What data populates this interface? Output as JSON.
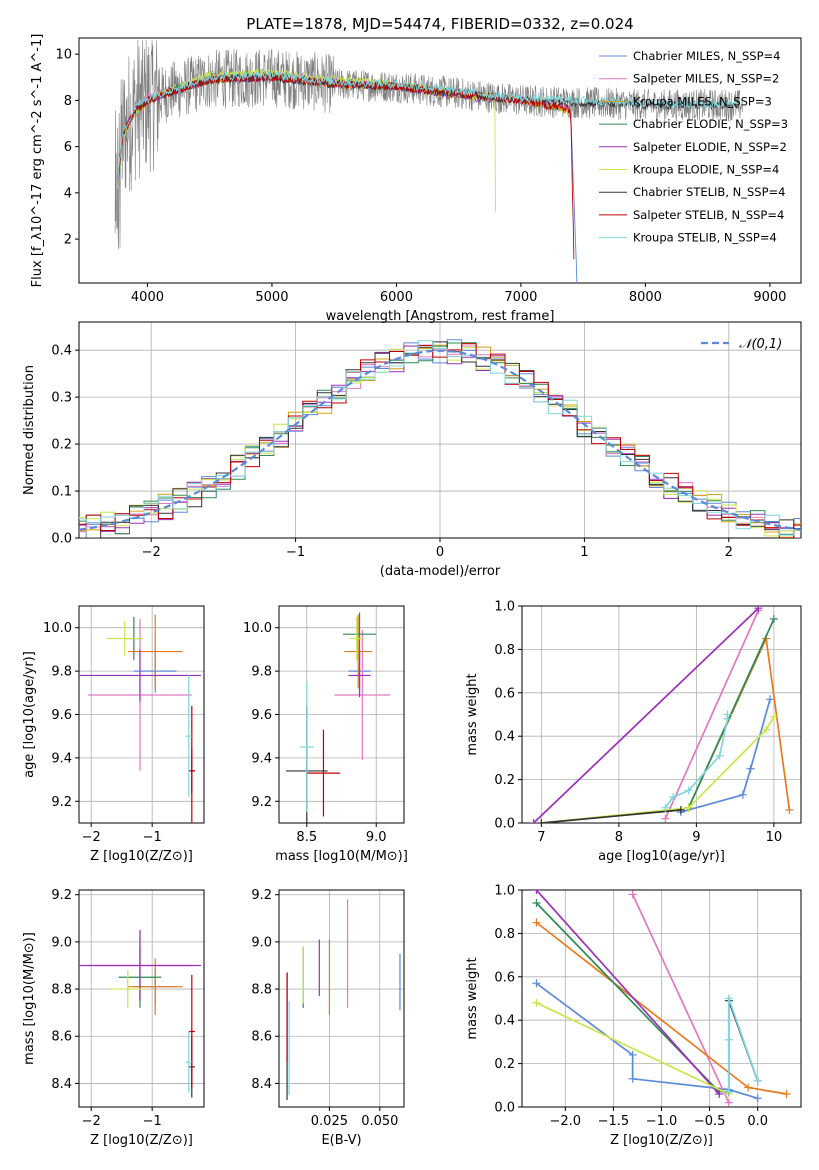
{
  "figure": {
    "title": "PLATE=1878, MJD=54474, FIBERID=0332, z=0.024"
  },
  "colors": {
    "data_spectrum": "#7f7f7f",
    "grid": "#b0b0b0",
    "normal_curve": "#5b8bd8"
  },
  "chart_data": [
    {
      "id": "spectrum",
      "type": "line",
      "xlabel": "wavelength [Angstrom, rest frame]",
      "ylabel": "Flux [f_λ10^-17 erg cm^-2 s^-1 A^-1]",
      "xlim": [
        3450,
        9250
      ],
      "ylim": [
        0.1,
        10.7
      ],
      "xticks": [
        4000,
        5000,
        6000,
        7000,
        8000,
        9000
      ],
      "yticks": [
        2,
        4,
        6,
        8,
        10
      ],
      "grid": false,
      "legend_position": "top-right",
      "series": [
        {
          "name": "Chabrier MILES, N_SSP=4",
          "color": "#5b8bd8",
          "x": [
            3760,
            3800,
            3900,
            4000,
            4200,
            4500,
            5000,
            5500,
            6000,
            6500,
            7000,
            7200,
            7400,
            7450
          ],
          "y": [
            4.5,
            6.5,
            7.6,
            8.0,
            8.4,
            8.9,
            9.0,
            8.7,
            8.6,
            8.3,
            8.0,
            7.8,
            7.6,
            0.2
          ]
        },
        {
          "name": "Salpeter MILES, N_SSP=2",
          "color": "#e377c2",
          "x": [
            3760,
            3800,
            3900,
            4000,
            4200,
            4500,
            5000,
            5500,
            6000,
            6500,
            7000,
            7200,
            7400
          ],
          "y": [
            4.2,
            6.4,
            7.7,
            8.1,
            8.5,
            9.0,
            9.1,
            8.8,
            8.6,
            8.3,
            8.0,
            7.9,
            7.6
          ]
        },
        {
          "name": "Kroupa MILES, N_SSP=3",
          "color": "#d6a016",
          "x": [
            3760,
            3800,
            3900,
            4000,
            4200,
            4500,
            5000,
            5500,
            6000,
            6500,
            7000,
            7200,
            7400
          ],
          "y": [
            4.6,
            6.5,
            7.5,
            7.9,
            8.4,
            8.9,
            9.0,
            8.7,
            8.6,
            8.2,
            8.0,
            7.8,
            7.5
          ]
        },
        {
          "name": "Chabrier ELODIE, N_SSP=3",
          "color": "#2e8b57",
          "x": [
            3760,
            3800,
            3900,
            4000,
            4200,
            4500,
            5000,
            5500,
            6000,
            6500,
            6800
          ],
          "y": [
            4.4,
            6.6,
            7.6,
            8.0,
            8.5,
            9.0,
            9.1,
            8.8,
            8.6,
            8.3,
            8.1
          ]
        },
        {
          "name": "Salpeter ELODIE, N_SSP=2",
          "color": "#9b30b8",
          "x": [
            3760,
            3800,
            3900,
            4000,
            4200,
            4500,
            5000,
            5500,
            6000,
            6500,
            6800
          ],
          "y": [
            4.5,
            6.5,
            7.6,
            8.0,
            8.4,
            8.9,
            9.0,
            8.8,
            8.6,
            8.2,
            8.0
          ]
        },
        {
          "name": "Kroupa ELODIE, N_SSP=4",
          "color": "#c8e64a",
          "x": [
            3760,
            3800,
            3900,
            4000,
            4200,
            4500,
            5000,
            5500,
            6000,
            6500,
            6790,
            6800
          ],
          "y": [
            4.3,
            6.4,
            7.5,
            8.0,
            8.5,
            9.1,
            9.2,
            8.9,
            8.7,
            8.3,
            8.1,
            0.2
          ]
        },
        {
          "name": "Chabrier STELIB, N_SSP=4",
          "color": "#333333",
          "x": [
            3760,
            3800,
            3900,
            4000,
            4200,
            4500,
            5000,
            5500,
            6000,
            6500,
            7000,
            7500,
            8000,
            8500,
            8750
          ],
          "y": [
            4.4,
            6.5,
            7.6,
            8.0,
            8.4,
            8.9,
            9.0,
            8.7,
            8.6,
            8.3,
            8.0,
            7.9,
            7.8,
            7.8,
            7.8
          ]
        },
        {
          "name": "Salpeter STELIB, N_SSP=4",
          "color": "#c00000",
          "x": [
            3760,
            3800,
            3900,
            4000,
            4200,
            4500,
            5000,
            5500,
            6000,
            6500,
            7000,
            7200,
            7400,
            7430
          ],
          "y": [
            4.4,
            6.5,
            7.6,
            8.0,
            8.4,
            8.9,
            9.0,
            8.7,
            8.6,
            8.3,
            8.0,
            7.8,
            7.6,
            0.2
          ]
        },
        {
          "name": "Kroupa STELIB, N_SSP=4",
          "color": "#7fd6dc",
          "x": [
            3760,
            3800,
            3900,
            4000,
            4200,
            4500,
            5000,
            5500,
            6000,
            6500,
            7000,
            7500,
            8000,
            8500,
            8750
          ],
          "y": [
            4.5,
            6.6,
            7.7,
            8.1,
            8.5,
            9.0,
            9.1,
            8.8,
            8.7,
            8.4,
            8.1,
            8.0,
            7.9,
            7.8,
            7.9
          ]
        }
      ]
    },
    {
      "id": "residuals",
      "type": "line",
      "xlabel": "(data-model)/error",
      "ylabel": "Normed distribution",
      "xlim": [
        -2.5,
        2.5
      ],
      "ylim": [
        0.0,
        0.46
      ],
      "xticks": [
        -2,
        -1,
        0,
        1,
        2
      ],
      "yticks": [
        0.0,
        0.1,
        0.2,
        0.3,
        0.4
      ],
      "grid": true,
      "legend_position": "top-right",
      "series": [
        {
          "name": "𝒩(0,1)",
          "style": "dashed",
          "color": "#5b8bd8",
          "function": "normal_pdf",
          "mean": 0,
          "sd": 1
        }
      ]
    },
    {
      "id": "age_vs_Z",
      "type": "scatter",
      "xlabel": "Z [log10(Z/Z⊙)]",
      "ylabel": "age [log10(age/yr)]",
      "xlim": [
        -2.2,
        -0.15
      ],
      "ylim": [
        9.1,
        10.1
      ],
      "xticks": [
        -2,
        -1
      ],
      "yticks": [
        9.2,
        9.4,
        9.6,
        9.8,
        10.0
      ],
      "grid": true,
      "points": [
        {
          "x": -0.95,
          "y": 9.8,
          "xerr": 0.35,
          "yerr": 0.1,
          "color": "#5b8bd8"
        },
        {
          "x": -1.2,
          "y": 9.69,
          "xerr": 0.85,
          "yerr": 0.35,
          "color": "#e377c2"
        },
        {
          "x": -0.95,
          "y": 9.89,
          "xerr": 0.45,
          "yerr": 0.17,
          "color": "#e87a1e"
        },
        {
          "x": -1.3,
          "y": 9.95,
          "xerr": 0.15,
          "yerr": 0.1,
          "color": "#2e8b57"
        },
        {
          "x": -1.2,
          "y": 9.78,
          "xerr": 1.0,
          "yerr": 0.12,
          "color": "#9b30b8"
        },
        {
          "x": -1.45,
          "y": 9.95,
          "xerr": 0.3,
          "yerr": 0.08,
          "color": "#c8e64a"
        },
        {
          "x": -0.35,
          "y": 9.34,
          "xerr": 0.05,
          "yerr": 0.1,
          "color": "#333333"
        },
        {
          "x": -0.35,
          "y": 9.34,
          "xerr": 0.05,
          "yerr": 0.3,
          "color": "#c00000"
        },
        {
          "x": -0.4,
          "y": 9.5,
          "xerr": 0.05,
          "yerr": 0.28,
          "color": "#7fd6dc"
        }
      ]
    },
    {
      "id": "age_vs_mass",
      "type": "scatter",
      "xlabel": "mass [log10(M/M⊙)]",
      "ylabel": "",
      "xlim": [
        8.3,
        9.2
      ],
      "ylim": [
        9.1,
        10.1
      ],
      "xticks": [
        8.5,
        9.0
      ],
      "yticks": [
        9.2,
        9.4,
        9.6,
        9.8,
        10.0
      ],
      "grid": true,
      "points": [
        {
          "x": 8.88,
          "y": 9.8,
          "xerr": 0.08,
          "yerr": 0.1,
          "color": "#5b8bd8"
        },
        {
          "x": 8.9,
          "y": 9.69,
          "xerr": 0.2,
          "yerr": 0.3,
          "color": "#e377c2"
        },
        {
          "x": 8.87,
          "y": 9.89,
          "xerr": 0.1,
          "yerr": 0.17,
          "color": "#e87a1e"
        },
        {
          "x": 8.88,
          "y": 9.97,
          "xerr": 0.12,
          "yerr": 0.1,
          "color": "#2e8b57"
        },
        {
          "x": 8.88,
          "y": 9.78,
          "xerr": 0.08,
          "yerr": 0.1,
          "color": "#9b30b8"
        },
        {
          "x": 8.86,
          "y": 9.95,
          "xerr": 0.05,
          "yerr": 0.1,
          "color": "#c8e64a"
        },
        {
          "x": 8.5,
          "y": 9.34,
          "xerr": 0.15,
          "yerr": 0.3,
          "color": "#333333"
        },
        {
          "x": 8.62,
          "y": 9.33,
          "xerr": 0.12,
          "yerr": 0.2,
          "color": "#c00000"
        },
        {
          "x": 8.5,
          "y": 9.45,
          "xerr": 0.05,
          "yerr": 0.3,
          "color": "#7fd6dc"
        }
      ]
    },
    {
      "id": "weight_vs_age",
      "type": "line",
      "xlabel": "age [log10(age/yr)]",
      "ylabel": "mass weight",
      "xlim": [
        6.75,
        10.35
      ],
      "ylim": [
        0.0,
        1.0
      ],
      "xticks": [
        7,
        8,
        9,
        10
      ],
      "yticks": [
        0.0,
        0.2,
        0.4,
        0.6,
        0.8,
        1.0
      ],
      "grid": true,
      "series": [
        {
          "color": "#5b8bd8",
          "x": [
            8.8,
            9.6,
            9.7,
            9.95
          ],
          "y": [
            0.05,
            0.13,
            0.25,
            0.57
          ]
        },
        {
          "color": "#e377c2",
          "x": [
            8.6,
            9.8
          ],
          "y": [
            0.02,
            0.98
          ]
        },
        {
          "color": "#e87a1e",
          "x": [
            8.9,
            9.9,
            10.2
          ],
          "y": [
            0.07,
            0.85,
            0.06
          ]
        },
        {
          "color": "#2e8b57",
          "x": [
            8.9,
            10.0
          ],
          "y": [
            0.07,
            0.94
          ]
        },
        {
          "color": "#9b30b8",
          "x": [
            6.9,
            9.8
          ],
          "y": [
            0.0,
            0.99
          ]
        },
        {
          "color": "#c8e64a",
          "x": [
            7.0,
            8.9,
            9.9,
            10.0
          ],
          "y": [
            0.0,
            0.07,
            0.43,
            0.49
          ]
        },
        {
          "color": "#333333",
          "x": [
            7.0,
            8.8
          ],
          "y": [
            0.0,
            0.06
          ]
        },
        {
          "color": "#7fd6dc",
          "x": [
            8.6,
            8.7,
            8.9,
            9.3,
            9.4,
            9.4
          ],
          "y": [
            0.07,
            0.12,
            0.15,
            0.31,
            0.48,
            0.5
          ]
        }
      ]
    },
    {
      "id": "mass_vs_Z",
      "type": "scatter",
      "xlabel": "Z [log10(Z/Z⊙)]",
      "ylabel": "mass [log10(M/M⊙)]",
      "xlim": [
        -2.2,
        -0.15
      ],
      "ylim": [
        8.3,
        9.22
      ],
      "xticks": [
        -2,
        -1
      ],
      "yticks": [
        8.4,
        8.6,
        8.8,
        9.0,
        9.2
      ],
      "grid": true,
      "points": [
        {
          "x": -0.95,
          "y": 8.81,
          "xerr": 0.35,
          "yerr": 0.08,
          "color": "#5b8bd8"
        },
        {
          "x": -1.2,
          "y": 8.9,
          "xerr": 0.85,
          "yerr": 0.15,
          "color": "#e377c2"
        },
        {
          "x": -0.95,
          "y": 8.81,
          "xerr": 0.45,
          "yerr": 0.12,
          "color": "#e87a1e"
        },
        {
          "x": -1.2,
          "y": 8.85,
          "xerr": 0.35,
          "yerr": 0.13,
          "color": "#2e8b57"
        },
        {
          "x": -1.2,
          "y": 8.9,
          "xerr": 1.0,
          "yerr": 0.15,
          "color": "#9b30b8"
        },
        {
          "x": -1.4,
          "y": 8.8,
          "xerr": 0.3,
          "yerr": 0.08,
          "color": "#c8e64a"
        },
        {
          "x": -0.35,
          "y": 8.47,
          "xerr": 0.05,
          "yerr": 0.13,
          "color": "#333333"
        },
        {
          "x": -0.35,
          "y": 8.62,
          "xerr": 0.05,
          "yerr": 0.24,
          "color": "#c00000"
        },
        {
          "x": -0.4,
          "y": 8.49,
          "xerr": 0.05,
          "yerr": 0.13,
          "color": "#7fd6dc"
        }
      ]
    },
    {
      "id": "mass_vs_ebv",
      "type": "scatter",
      "xlabel": "E(B-V)",
      "ylabel": "",
      "xlim": [
        0.0,
        0.062
      ],
      "ylim": [
        8.3,
        9.22
      ],
      "xticks": [
        0.025,
        0.05
      ],
      "yticks": [
        8.4,
        8.6,
        8.8,
        9.0,
        9.2
      ],
      "grid": true,
      "points": [
        {
          "x": 0.06,
          "y": 8.83,
          "xerr": 0,
          "yerr": 0.12,
          "color": "#5b8bd8"
        },
        {
          "x": 0.034,
          "y": 8.95,
          "xerr": 0,
          "yerr": 0.23,
          "color": "#e377c2"
        },
        {
          "x": 0.025,
          "y": 8.85,
          "xerr": 0,
          "yerr": 0.16,
          "color": "#e87a1e"
        },
        {
          "x": 0.012,
          "y": 8.85,
          "xerr": 0,
          "yerr": 0.13,
          "color": "#2e8b57"
        },
        {
          "x": 0.02,
          "y": 8.89,
          "xerr": 0,
          "yerr": 0.12,
          "color": "#9b30b8"
        },
        {
          "x": 0.012,
          "y": 8.86,
          "xerr": 0,
          "yerr": 0.12,
          "color": "#c8e64a"
        },
        {
          "x": 0.004,
          "y": 8.6,
          "xerr": 0,
          "yerr": 0.27,
          "color": "#333333"
        },
        {
          "x": 0.004,
          "y": 8.68,
          "xerr": 0,
          "yerr": 0.19,
          "color": "#c00000"
        },
        {
          "x": 0.005,
          "y": 8.55,
          "xerr": 0,
          "yerr": 0.2,
          "color": "#7fd6dc"
        }
      ]
    },
    {
      "id": "weight_vs_Z",
      "type": "line",
      "xlabel": "Z [log10(Z/Z⊙)]",
      "ylabel": "mass weight",
      "xlim": [
        -2.45,
        0.45
      ],
      "ylim": [
        0.0,
        1.0
      ],
      "xticks": [
        -2.0,
        -1.5,
        -1.0,
        -0.5,
        0.0
      ],
      "yticks": [
        0.0,
        0.2,
        0.4,
        0.6,
        0.8,
        1.0
      ],
      "grid": true,
      "series": [
        {
          "color": "#5b8bd8",
          "x": [
            -2.3,
            -1.3,
            -1.3,
            -0.3,
            0.0
          ],
          "y": [
            0.57,
            0.24,
            0.13,
            0.08,
            0.04
          ]
        },
        {
          "color": "#e377c2",
          "x": [
            -1.3,
            -0.3
          ],
          "y": [
            0.98,
            0.02
          ]
        },
        {
          "color": "#e87a1e",
          "x": [
            -2.3,
            -0.1,
            0.3
          ],
          "y": [
            0.85,
            0.09,
            0.06
          ]
        },
        {
          "color": "#2e8b57",
          "x": [
            -2.3,
            -0.4
          ],
          "y": [
            0.94,
            0.07
          ]
        },
        {
          "color": "#9b30b8",
          "x": [
            -2.3,
            -0.4
          ],
          "y": [
            1.0,
            0.06
          ]
        },
        {
          "color": "#c8e64a",
          "x": [
            -2.3,
            -0.3
          ],
          "y": [
            0.48,
            0.06
          ]
        },
        {
          "color": "#333333",
          "x": [
            -0.3,
            -0.3,
            0.0
          ],
          "y": [
            0.07,
            0.49,
            0.12
          ]
        },
        {
          "color": "#7fd6dc",
          "x": [
            -0.3,
            -0.3,
            -0.3,
            0.0
          ],
          "y": [
            0.07,
            0.31,
            0.5,
            0.12
          ]
        }
      ]
    }
  ]
}
